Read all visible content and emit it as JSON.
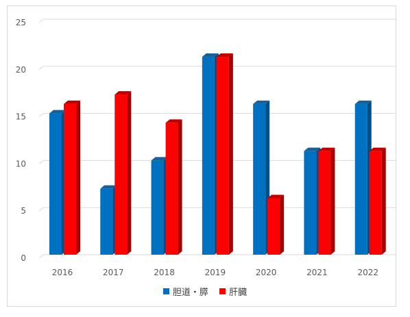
{
  "chart_data": {
    "type": "bar",
    "title": "",
    "xlabel": "",
    "ylabel": "",
    "categories": [
      "2016",
      "2017",
      "2018",
      "2019",
      "2020",
      "2021",
      "2022"
    ],
    "series": [
      {
        "name": "胆道・膵",
        "values": [
          15,
          7,
          10,
          21,
          16,
          11,
          16
        ],
        "color": "#0070C0",
        "side_color": "#004E87",
        "top_color": "#1A5F96"
      },
      {
        "name": "肝臓",
        "values": [
          16,
          17,
          14,
          21,
          6,
          11,
          11
        ],
        "color": "#FF0000",
        "side_color": "#A60000",
        "top_color": "#C00000"
      }
    ],
    "y_ticks": [
      0,
      5,
      10,
      15,
      20,
      25
    ],
    "ylim": [
      0,
      25
    ],
    "grid": true,
    "bar_style": "3d-column",
    "legend_position": "bottom"
  }
}
